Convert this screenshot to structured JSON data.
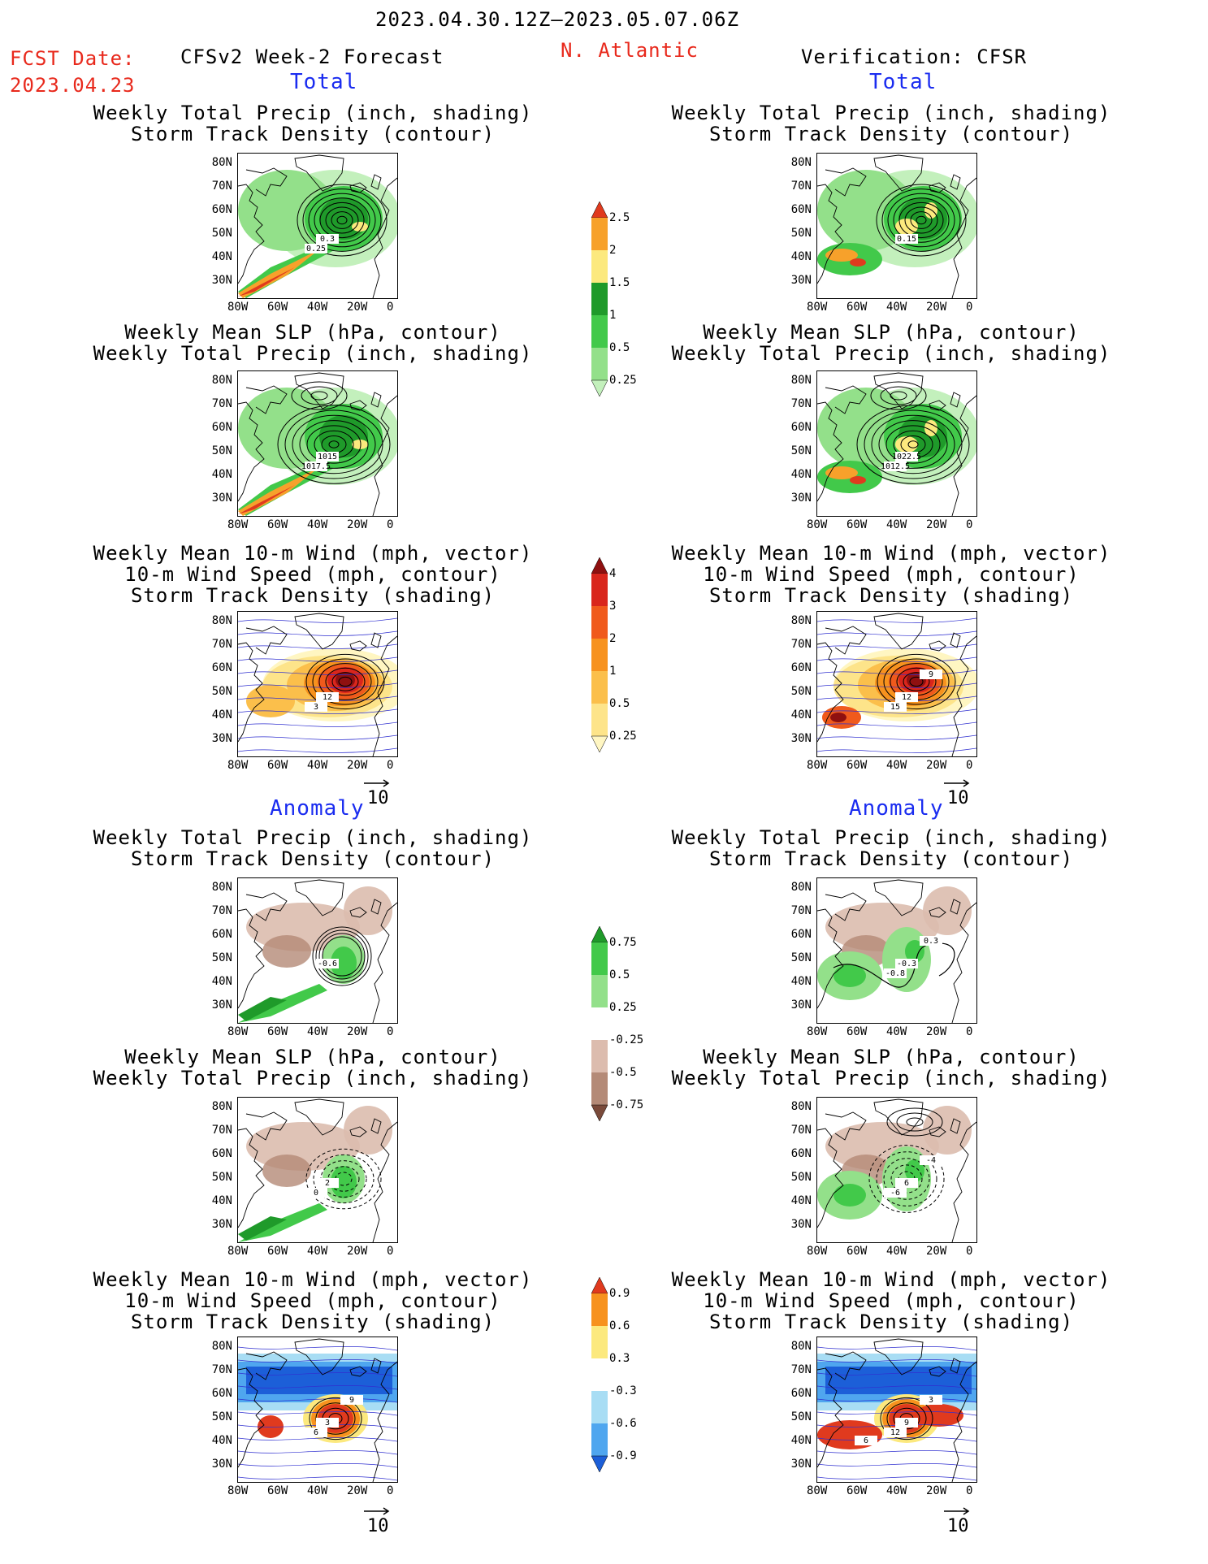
{
  "header": {
    "period": "2023.04.30.12Z–2023.05.07.06Z",
    "region": "N. Atlantic",
    "fcst_label": "FCST Date:",
    "fcst_date": "2023.04.23",
    "left_title": "CFSv2 Week-2 Forecast",
    "right_title": "Verification: CFSR"
  },
  "sections": {
    "total": "Total",
    "anomaly": "Anomaly"
  },
  "panel_titles": {
    "precip_track": "Weekly Total Precip (inch, shading)\nStorm Track Density (contour)",
    "slp_precip": "Weekly Mean SLP (hPa, contour)\nWeekly Total Precip (inch, shading)",
    "wind": "Weekly Mean 10-m Wind (mph, vector)\n10-m Wind Speed (mph, contour)\nStorm Track Density (shading)"
  },
  "lat_labels": [
    "80N",
    "70N",
    "60N",
    "50N",
    "40N",
    "30N"
  ],
  "lon_labels": [
    "80W",
    "60W",
    "40W",
    "20W",
    "0"
  ],
  "vector_ref": "10",
  "map_labels": {
    "f_precip": [
      "0.3",
      "0.25"
    ],
    "f_slp": [
      "1015",
      "1017.5"
    ],
    "f_wind": [
      "12",
      "3"
    ],
    "v_precip": [
      "0.15"
    ],
    "v_slp": [
      "1022.5",
      "1012.5"
    ],
    "v_wind": [
      "12",
      "15",
      "9"
    ],
    "fa_precip": [
      "-0.6"
    ],
    "fa_slp": [
      "2",
      "0"
    ],
    "fa_wind": [
      "3",
      "6",
      "9"
    ],
    "va_precip": [
      "-0.3",
      "-0.8",
      "0.3"
    ],
    "va_slp": [
      "6",
      "-6",
      "-4"
    ],
    "va_wind": [
      "9",
      "12",
      "3",
      "6"
    ]
  },
  "colorbars": {
    "precip_total": [
      "2.5",
      "2",
      "1.5",
      "1",
      "0.5",
      "0.25"
    ],
    "wind_total": [
      "4",
      "3",
      "2",
      "1",
      "0.5",
      "0.25"
    ],
    "precip_anom": [
      "0.75",
      "0.5",
      "0.25",
      "-0.25",
      "-0.5",
      "-0.75"
    ],
    "wind_anom": [
      "0.9",
      "0.6",
      "0.3",
      "-0.3",
      "-0.6",
      "-0.9"
    ]
  },
  "colors": {
    "precip_total": [
      "#e03a1e",
      "#f7a12b",
      "#fce97e",
      "#1f9a2a",
      "#42c94a",
      "#93e08a",
      "#c3f0bc"
    ],
    "wind_total": [
      "#8f1010",
      "#d9261c",
      "#f05a1c",
      "#f7921e",
      "#fbbf4b",
      "#fde48a",
      "#fff6c2"
    ],
    "precip_anom": [
      "#1f9a2a",
      "#42c94a",
      "#93e08a",
      "#ffffff",
      "#dcbcae",
      "#b48a77",
      "#7a4a3a"
    ],
    "wind_anom": [
      "#e03a1e",
      "#f7921e",
      "#fce97e",
      "#ffffff",
      "#a8ddf4",
      "#4fa6ef",
      "#1c5fd8"
    ]
  }
}
